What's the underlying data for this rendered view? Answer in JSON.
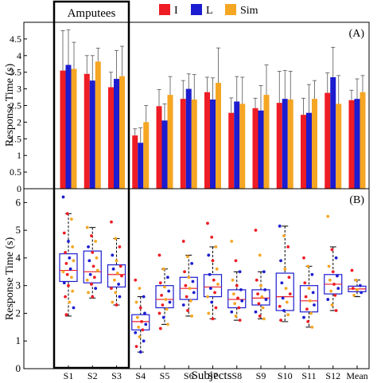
{
  "legend": {
    "items": [
      {
        "label": "I",
        "color": "#ee1c24"
      },
      {
        "label": "L",
        "color": "#1c1cd0"
      },
      {
        "label": "Sim",
        "color": "#f5a623"
      }
    ]
  },
  "group_box_label": "Amputees",
  "shared_xlabel": "Subjects",
  "chart_data": [
    {
      "type": "bar",
      "panel_label": "(A)",
      "ylabel": "Response Time (s)",
      "ylim": [
        0,
        5
      ],
      "yticks": [
        "0",
        "0.5",
        "1",
        "1.5",
        "2",
        "2.5",
        "3",
        "3.5",
        "4",
        "4.5"
      ],
      "ytick_values": [
        0,
        0.5,
        1,
        1.5,
        2,
        2.5,
        3,
        3.5,
        4,
        4.5
      ],
      "categories": [
        "S1",
        "S2",
        "S3",
        "S4",
        "S5",
        "S6",
        "S7",
        "S8",
        "S9",
        "S10",
        "S11",
        "S12",
        "Mean"
      ],
      "series": [
        {
          "name": "I",
          "color": "#ee1c24",
          "values": [
            3.55,
            3.45,
            3.05,
            1.6,
            2.48,
            2.7,
            2.9,
            2.28,
            2.42,
            2.58,
            2.22,
            2.88,
            2.66
          ],
          "errors": [
            1.2,
            0.55,
            0.45,
            0.2,
            0.5,
            0.55,
            0.45,
            0.45,
            0.3,
            0.95,
            0.5,
            0.6,
            0.3
          ]
        },
        {
          "name": "L",
          "color": "#1c1cd0",
          "values": [
            3.72,
            3.25,
            3.3,
            1.38,
            2.05,
            3.0,
            2.68,
            2.62,
            2.35,
            2.7,
            2.28,
            3.35,
            2.7
          ],
          "errors": [
            1.05,
            0.75,
            0.85,
            0.45,
            0.5,
            0.45,
            0.65,
            0.75,
            0.75,
            0.85,
            0.85,
            0.9,
            0.6
          ]
        },
        {
          "name": "Sim",
          "color": "#f5a623",
          "values": [
            3.6,
            3.82,
            3.38,
            2.0,
            2.82,
            2.68,
            3.18,
            2.55,
            2.82,
            2.68,
            2.7,
            2.55,
            2.9
          ],
          "errors": [
            0.8,
            0.4,
            0.9,
            0.5,
            0.55,
            0.75,
            1.05,
            0.8,
            0.9,
            0.85,
            0.55,
            0.85,
            0.5
          ]
        }
      ]
    },
    {
      "type": "box",
      "panel_label": "(B)",
      "ylabel": "Response Time (s)",
      "xlabel": "Subjects",
      "ylim": [
        0,
        6.5
      ],
      "yticks": [
        "0",
        "1",
        "2",
        "3",
        "4",
        "5",
        "6"
      ],
      "ytick_values": [
        0,
        1,
        2,
        3,
        4,
        5,
        6
      ],
      "categories": [
        "S1",
        "S2",
        "S3",
        "S4",
        "S5",
        "S6",
        "S7",
        "S8",
        "S9",
        "S10",
        "S11",
        "S12",
        "Mean"
      ],
      "boxes": [
        {
          "q1": 3.15,
          "median": 3.55,
          "q3": 4.15,
          "wlo": 1.9,
          "whi": 5.6
        },
        {
          "q1": 3.1,
          "median": 3.5,
          "q3": 4.25,
          "wlo": 2.55,
          "whi": 5.1
        },
        {
          "q1": 2.95,
          "median": 3.4,
          "q3": 3.75,
          "wlo": 2.3,
          "whi": 4.7
        },
        {
          "q1": 1.4,
          "median": 1.7,
          "q3": 1.95,
          "wlo": 0.6,
          "whi": 2.6
        },
        {
          "q1": 2.2,
          "median": 2.5,
          "q3": 3.0,
          "wlo": 1.6,
          "whi": 3.6
        },
        {
          "q1": 2.5,
          "median": 2.9,
          "q3": 3.3,
          "wlo": 1.9,
          "whi": 4.1
        },
        {
          "q1": 2.6,
          "median": 2.95,
          "q3": 3.4,
          "wlo": 1.8,
          "whi": 4.4
        },
        {
          "q1": 2.2,
          "median": 2.5,
          "q3": 2.85,
          "wlo": 1.75,
          "whi": 3.5
        },
        {
          "q1": 2.3,
          "median": 2.55,
          "q3": 2.85,
          "wlo": 1.8,
          "whi": 3.5
        },
        {
          "q1": 2.1,
          "median": 2.6,
          "q3": 3.45,
          "wlo": 1.7,
          "whi": 5.15
        },
        {
          "q1": 2.05,
          "median": 2.45,
          "q3": 3.0,
          "wlo": 1.5,
          "whi": 3.7
        },
        {
          "q1": 2.7,
          "median": 3.05,
          "q3": 3.4,
          "wlo": 2.1,
          "whi": 4.4
        },
        {
          "q1": 2.78,
          "median": 2.88,
          "q3": 2.98,
          "wlo": 2.6,
          "whi": 3.2
        }
      ],
      "points": [
        [
          [
            6.2,
            "L"
          ],
          [
            5.6,
            "I"
          ],
          [
            5.4,
            "Sim"
          ],
          [
            4.9,
            "I"
          ],
          [
            4.6,
            "L"
          ],
          [
            4.4,
            "Sim"
          ],
          [
            4.2,
            "I"
          ],
          [
            4.0,
            "L"
          ],
          [
            3.9,
            "Sim"
          ],
          [
            3.8,
            "I"
          ],
          [
            3.6,
            "L"
          ],
          [
            3.5,
            "Sim"
          ],
          [
            3.4,
            "I"
          ],
          [
            3.3,
            "Sim"
          ],
          [
            3.1,
            "L"
          ],
          [
            3.0,
            "I"
          ],
          [
            2.8,
            "Sim"
          ],
          [
            2.6,
            "I"
          ],
          [
            2.4,
            "Sim"
          ],
          [
            2.2,
            "L"
          ],
          [
            1.95,
            "I"
          ]
        ],
        [
          [
            5.1,
            "Sim"
          ],
          [
            4.8,
            "I"
          ],
          [
            4.6,
            "Sim"
          ],
          [
            4.4,
            "L"
          ],
          [
            4.2,
            "I"
          ],
          [
            4.0,
            "Sim"
          ],
          [
            3.9,
            "L"
          ],
          [
            3.7,
            "I"
          ],
          [
            3.55,
            "Sim"
          ],
          [
            3.4,
            "L"
          ],
          [
            3.3,
            "I"
          ],
          [
            3.2,
            "Sim"
          ],
          [
            3.05,
            "I"
          ],
          [
            2.9,
            "L"
          ],
          [
            2.75,
            "Sim"
          ],
          [
            2.6,
            "I"
          ]
        ],
        [
          [
            5.3,
            "I"
          ],
          [
            4.7,
            "Sim"
          ],
          [
            4.4,
            "I"
          ],
          [
            4.1,
            "L"
          ],
          [
            3.9,
            "Sim"
          ],
          [
            3.7,
            "I"
          ],
          [
            3.6,
            "L"
          ],
          [
            3.45,
            "Sim"
          ],
          [
            3.35,
            "I"
          ],
          [
            3.2,
            "Sim"
          ],
          [
            3.05,
            "L"
          ],
          [
            2.9,
            "I"
          ],
          [
            2.75,
            "Sim"
          ],
          [
            2.6,
            "L"
          ],
          [
            2.4,
            "Sim"
          ],
          [
            2.3,
            "I"
          ]
        ],
        [
          [
            3.2,
            "I"
          ],
          [
            2.9,
            "Sim"
          ],
          [
            2.6,
            "L"
          ],
          [
            2.4,
            "Sim"
          ],
          [
            2.2,
            "I"
          ],
          [
            2.0,
            "L"
          ],
          [
            1.85,
            "Sim"
          ],
          [
            1.7,
            "I"
          ],
          [
            1.6,
            "L"
          ],
          [
            1.5,
            "Sim"
          ],
          [
            1.4,
            "I"
          ],
          [
            1.3,
            "L"
          ],
          [
            1.15,
            "Sim"
          ],
          [
            1.0,
            "L"
          ],
          [
            0.8,
            "I"
          ],
          [
            0.6,
            "L"
          ]
        ],
        [
          [
            4.1,
            "I"
          ],
          [
            3.6,
            "Sim"
          ],
          [
            3.3,
            "L"
          ],
          [
            3.1,
            "I"
          ],
          [
            2.95,
            "Sim"
          ],
          [
            2.8,
            "L"
          ],
          [
            2.65,
            "I"
          ],
          [
            2.5,
            "Sim"
          ],
          [
            2.4,
            "L"
          ],
          [
            2.3,
            "I"
          ],
          [
            2.15,
            "Sim"
          ],
          [
            2.0,
            "I"
          ],
          [
            1.85,
            "L"
          ],
          [
            1.6,
            "Sim"
          ],
          [
            1.45,
            "I"
          ]
        ],
        [
          [
            4.6,
            "I"
          ],
          [
            4.05,
            "Sim"
          ],
          [
            3.8,
            "L"
          ],
          [
            3.5,
            "I"
          ],
          [
            3.3,
            "Sim"
          ],
          [
            3.15,
            "L"
          ],
          [
            3.0,
            "I"
          ],
          [
            2.9,
            "Sim"
          ],
          [
            2.75,
            "L"
          ],
          [
            2.6,
            "I"
          ],
          [
            2.45,
            "Sim"
          ],
          [
            2.3,
            "L"
          ],
          [
            2.1,
            "I"
          ],
          [
            1.9,
            "Sim"
          ]
        ],
        [
          [
            5.25,
            "I"
          ],
          [
            4.75,
            "I"
          ],
          [
            4.4,
            "Sim"
          ],
          [
            4.1,
            "L"
          ],
          [
            3.9,
            "I"
          ],
          [
            3.6,
            "Sim"
          ],
          [
            3.4,
            "L"
          ],
          [
            3.2,
            "I"
          ],
          [
            3.05,
            "Sim"
          ],
          [
            2.9,
            "L"
          ],
          [
            2.75,
            "I"
          ],
          [
            2.6,
            "Sim"
          ],
          [
            2.4,
            "L"
          ],
          [
            2.2,
            "I"
          ],
          [
            2.0,
            "Sim"
          ],
          [
            1.8,
            "I"
          ]
        ],
        [
          [
            4.6,
            "Sim"
          ],
          [
            3.9,
            "I"
          ],
          [
            3.5,
            "L"
          ],
          [
            3.2,
            "Sim"
          ],
          [
            3.0,
            "I"
          ],
          [
            2.85,
            "L"
          ],
          [
            2.7,
            "Sim"
          ],
          [
            2.55,
            "I"
          ],
          [
            2.45,
            "L"
          ],
          [
            2.35,
            "Sim"
          ],
          [
            2.2,
            "I"
          ],
          [
            2.05,
            "L"
          ],
          [
            1.9,
            "Sim"
          ],
          [
            1.75,
            "I"
          ]
        ],
        [
          [
            5.0,
            "I"
          ],
          [
            4.1,
            "Sim"
          ],
          [
            3.5,
            "L"
          ],
          [
            3.2,
            "I"
          ],
          [
            3.0,
            "Sim"
          ],
          [
            2.85,
            "L"
          ],
          [
            2.7,
            "I"
          ],
          [
            2.6,
            "Sim"
          ],
          [
            2.5,
            "L"
          ],
          [
            2.35,
            "I"
          ],
          [
            2.2,
            "Sim"
          ],
          [
            2.05,
            "L"
          ],
          [
            1.9,
            "I"
          ],
          [
            1.8,
            "Sim"
          ]
        ],
        [
          [
            5.15,
            "L"
          ],
          [
            4.8,
            "Sim"
          ],
          [
            4.4,
            "I"
          ],
          [
            3.9,
            "L"
          ],
          [
            3.6,
            "Sim"
          ],
          [
            3.3,
            "I"
          ],
          [
            3.1,
            "L"
          ],
          [
            2.9,
            "Sim"
          ],
          [
            2.7,
            "I"
          ],
          [
            2.55,
            "L"
          ],
          [
            2.4,
            "Sim"
          ],
          [
            2.25,
            "I"
          ],
          [
            2.1,
            "L"
          ],
          [
            1.95,
            "Sim"
          ],
          [
            1.75,
            "I"
          ]
        ],
        [
          [
            4.0,
            "I"
          ],
          [
            3.7,
            "Sim"
          ],
          [
            3.4,
            "L"
          ],
          [
            3.1,
            "I"
          ],
          [
            2.9,
            "Sim"
          ],
          [
            2.75,
            "L"
          ],
          [
            2.6,
            "I"
          ],
          [
            2.45,
            "Sim"
          ],
          [
            2.3,
            "L"
          ],
          [
            2.15,
            "I"
          ],
          [
            2.0,
            "Sim"
          ],
          [
            1.85,
            "L"
          ],
          [
            1.7,
            "I"
          ],
          [
            1.5,
            "Sim"
          ]
        ],
        [
          [
            5.5,
            "Sim"
          ],
          [
            4.3,
            "I"
          ],
          [
            4.0,
            "L"
          ],
          [
            3.7,
            "Sim"
          ],
          [
            3.5,
            "I"
          ],
          [
            3.35,
            "L"
          ],
          [
            3.2,
            "Sim"
          ],
          [
            3.05,
            "I"
          ],
          [
            2.9,
            "L"
          ],
          [
            2.8,
            "Sim"
          ],
          [
            2.65,
            "I"
          ],
          [
            2.5,
            "L"
          ],
          [
            2.3,
            "Sim"
          ],
          [
            2.1,
            "I"
          ]
        ],
        [
          [
            3.55,
            "I"
          ],
          [
            3.2,
            "Sim"
          ],
          [
            3.0,
            "L"
          ],
          [
            2.9,
            "I"
          ],
          [
            2.85,
            "Sim"
          ],
          [
            2.75,
            "L"
          ],
          [
            2.65,
            "Sim"
          ]
        ]
      ]
    }
  ]
}
